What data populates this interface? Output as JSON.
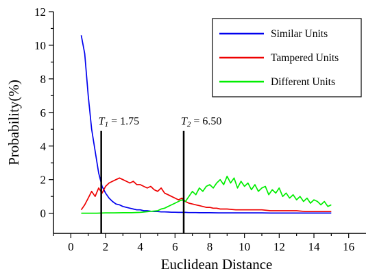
{
  "chart_data": {
    "type": "line",
    "title": "",
    "xlabel": "Euclidean Distance",
    "ylabel": "Probability(%)",
    "xlim": [
      -1,
      17
    ],
    "ylim": [
      -1.2,
      12
    ],
    "xticks": [
      0,
      2,
      4,
      6,
      8,
      10,
      12,
      14,
      16
    ],
    "yticks": [
      0,
      2,
      4,
      6,
      8,
      10,
      12
    ],
    "grid": false,
    "legend": "top-right",
    "thresholds": [
      {
        "symbol": "T",
        "sub": "1",
        "value": 1.75,
        "text": " = 1.75",
        "y_top": 4.9
      },
      {
        "symbol": "T",
        "sub": "2",
        "value": 6.5,
        "text": " = 6.50",
        "y_top": 4.9
      }
    ],
    "series": [
      {
        "name": "Similar Units",
        "color": "#0000ee",
        "x": [
          0.6,
          0.8,
          1.0,
          1.2,
          1.4,
          1.6,
          1.8,
          2.0,
          2.2,
          2.4,
          2.6,
          2.8,
          3.0,
          3.2,
          3.4,
          3.6,
          3.8,
          4.0,
          4.2,
          4.4,
          4.6,
          4.8,
          5.0,
          5.2,
          5.4,
          5.6,
          5.8,
          6.0,
          6.2,
          6.4,
          6.6,
          6.8,
          7.0,
          7.2,
          7.4,
          7.6,
          7.8,
          8.0,
          8.5,
          9.0,
          9.5,
          10.0,
          10.5,
          11.0,
          11.5,
          12.0,
          12.5,
          13.0,
          13.5,
          14.0,
          14.5,
          15.0
        ],
        "y": [
          10.6,
          9.5,
          7.0,
          5.0,
          3.7,
          2.4,
          1.6,
          1.2,
          0.9,
          0.7,
          0.55,
          0.5,
          0.4,
          0.35,
          0.3,
          0.25,
          0.2,
          0.2,
          0.15,
          0.15,
          0.12,
          0.1,
          0.1,
          0.08,
          0.08,
          0.07,
          0.06,
          0.06,
          0.05,
          0.05,
          0.05,
          0.04,
          0.04,
          0.04,
          0.03,
          0.03,
          0.03,
          0.03,
          0.02,
          0.02,
          0.02,
          0.02,
          0.02,
          0.02,
          0.01,
          0.01,
          0.01,
          0.01,
          0.01,
          0.01,
          0.01,
          0.01
        ]
      },
      {
        "name": "Tampered Units",
        "color": "#ee0000",
        "x": [
          0.6,
          0.8,
          1.0,
          1.2,
          1.4,
          1.6,
          1.8,
          2.0,
          2.2,
          2.4,
          2.6,
          2.8,
          3.0,
          3.2,
          3.4,
          3.6,
          3.8,
          4.0,
          4.2,
          4.4,
          4.6,
          4.8,
          5.0,
          5.2,
          5.4,
          5.6,
          5.8,
          6.0,
          6.2,
          6.4,
          6.6,
          6.8,
          7.0,
          7.2,
          7.4,
          7.6,
          7.8,
          8.0,
          8.2,
          8.4,
          8.6,
          8.8,
          9.0,
          9.5,
          10.0,
          10.5,
          11.0,
          11.5,
          12.0,
          12.5,
          13.0,
          13.5,
          14.0,
          14.5,
          15.0
        ],
        "y": [
          0.2,
          0.5,
          0.9,
          1.3,
          1.0,
          1.5,
          1.2,
          1.6,
          1.8,
          1.9,
          2.0,
          2.1,
          2.0,
          1.9,
          1.8,
          1.9,
          1.7,
          1.7,
          1.6,
          1.5,
          1.6,
          1.4,
          1.3,
          1.5,
          1.2,
          1.1,
          1.0,
          0.9,
          0.8,
          0.9,
          0.7,
          0.6,
          0.55,
          0.5,
          0.45,
          0.4,
          0.35,
          0.35,
          0.3,
          0.3,
          0.25,
          0.25,
          0.25,
          0.2,
          0.2,
          0.2,
          0.2,
          0.15,
          0.15,
          0.15,
          0.15,
          0.1,
          0.1,
          0.1,
          0.1
        ]
      },
      {
        "name": "Different Units",
        "color": "#00ee00",
        "x": [
          0.6,
          1.0,
          1.5,
          2.0,
          2.5,
          3.0,
          3.5,
          4.0,
          4.5,
          5.0,
          5.2,
          5.4,
          5.6,
          5.8,
          6.0,
          6.2,
          6.4,
          6.6,
          6.8,
          7.0,
          7.2,
          7.4,
          7.6,
          7.8,
          8.0,
          8.2,
          8.4,
          8.6,
          8.8,
          9.0,
          9.2,
          9.4,
          9.6,
          9.8,
          10.0,
          10.2,
          10.4,
          10.6,
          10.8,
          11.0,
          11.2,
          11.4,
          11.6,
          11.8,
          12.0,
          12.2,
          12.4,
          12.6,
          12.8,
          13.0,
          13.2,
          13.4,
          13.6,
          13.8,
          14.0,
          14.2,
          14.4,
          14.6,
          14.8,
          15.0
        ],
        "y": [
          0.0,
          0.0,
          0.0,
          0.02,
          0.02,
          0.03,
          0.03,
          0.05,
          0.1,
          0.15,
          0.25,
          0.3,
          0.4,
          0.5,
          0.6,
          0.7,
          0.8,
          0.7,
          1.0,
          1.3,
          1.1,
          1.5,
          1.3,
          1.6,
          1.7,
          1.5,
          1.8,
          2.0,
          1.7,
          2.2,
          1.8,
          2.1,
          1.5,
          1.9,
          1.6,
          1.8,
          1.4,
          1.7,
          1.3,
          1.5,
          1.6,
          1.1,
          1.4,
          1.2,
          1.5,
          1.0,
          1.2,
          0.9,
          1.1,
          0.8,
          1.0,
          0.7,
          0.9,
          0.6,
          0.8,
          0.7,
          0.5,
          0.7,
          0.4,
          0.5
        ]
      }
    ]
  }
}
